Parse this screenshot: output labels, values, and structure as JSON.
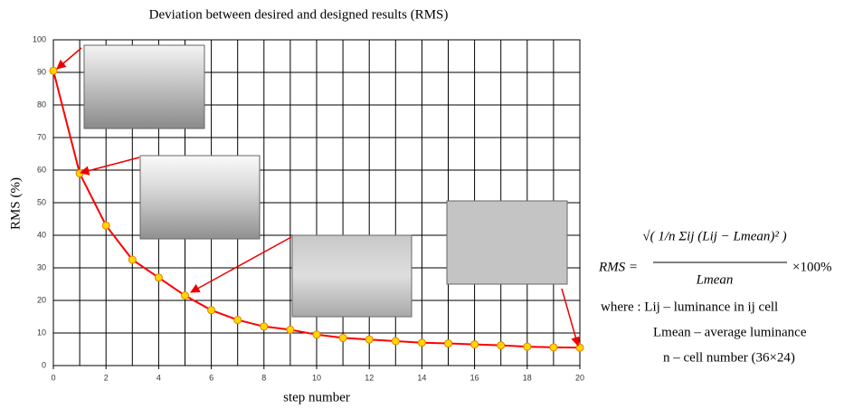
{
  "chart_data": {
    "type": "line",
    "title": "Deviation between desired and designed results (RMS)",
    "x_label": "step number",
    "y_label": "RMS (%)",
    "x": [
      0,
      1,
      2,
      3,
      4,
      5,
      6,
      7,
      8,
      9,
      10,
      11,
      12,
      13,
      14,
      15,
      16,
      17,
      18,
      19,
      20
    ],
    "values": [
      90.5,
      59,
      43,
      32.5,
      27,
      21.5,
      17,
      14,
      12,
      11,
      9.5,
      8.5,
      8,
      7.5,
      7,
      6.8,
      6.5,
      6.2,
      5.8,
      5.6,
      5.5
    ],
    "color": "#ff0000",
    "marker_color": "#ffd700",
    "xlim": [
      0,
      20
    ],
    "ylim": [
      0,
      100
    ],
    "xticks": [
      0,
      2,
      4,
      6,
      8,
      10,
      12,
      14,
      16,
      18,
      20
    ],
    "yticks": [
      0,
      10,
      20,
      30,
      40,
      50,
      60,
      70,
      80,
      90,
      100
    ],
    "x_grid_step": 1,
    "grid": true
  },
  "formula": {
    "lhs": "RMS =",
    "numerator": "√( 1/n Σij (Lij − Lmean)² )",
    "denominator": "Lmean",
    "factor": "×100%",
    "where": "where : Lij – luminance in ij cell",
    "mean": "Lmean – average luminance",
    "count": "n – cell number (36×24)"
  }
}
